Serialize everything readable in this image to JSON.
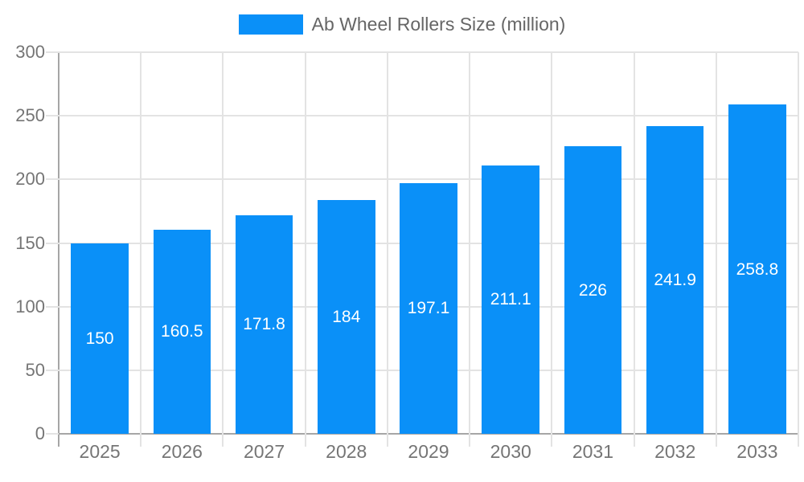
{
  "legend": {
    "label": "Ab Wheel Rollers Size (million)"
  },
  "chart_data": {
    "type": "bar",
    "title": "Ab Wheel Rollers Size (million)",
    "categories": [
      "2025",
      "2026",
      "2027",
      "2028",
      "2029",
      "2030",
      "2031",
      "2032",
      "2033"
    ],
    "series": [
      {
        "name": "Ab Wheel Rollers Size (million)",
        "values": [
          150,
          160.5,
          171.8,
          184,
          197.1,
          211.1,
          226,
          241.9,
          258.8
        ]
      }
    ],
    "xlabel": "",
    "ylabel": "",
    "ylim": [
      0,
      300
    ],
    "yticks": [
      0,
      50,
      100,
      150,
      200,
      250,
      300
    ],
    "grid": true,
    "legend_position": "top",
    "value_labels": "inside-middle-white",
    "colors": {
      "bar": "#0a90f8",
      "grid": "#e3e3e3",
      "axis_line": "#a6a6a6",
      "axis_text": "#757575",
      "legend_text": "#666666",
      "value_text": "#ffffff",
      "background": "#ffffff"
    }
  }
}
